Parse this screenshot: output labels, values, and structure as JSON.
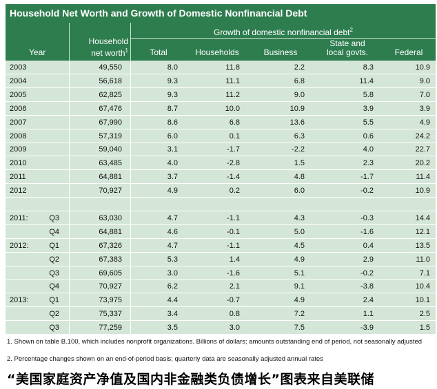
{
  "title": "Household Net Worth and Growth of Domestic Nonfinancial Debt",
  "header": {
    "year": "Year",
    "net_worth_line1": "Household",
    "net_worth_line2": "net worth",
    "net_worth_sup": "1",
    "group_label": "Growth of domestic nonfinancial debt",
    "group_sup": "2",
    "total": "Total",
    "households": "Households",
    "business": "Business",
    "state_line1": "State and",
    "state_line2": "local govts.",
    "federal": "Federal"
  },
  "rows": [
    {
      "year": "2003",
      "q": "",
      "nw": "49,550",
      "total": "8.0",
      "hh": "11.8",
      "bus": "2.2",
      "slg": "8.3",
      "fed": "10.9"
    },
    {
      "year": "2004",
      "q": "",
      "nw": "56,618",
      "total": "9.3",
      "hh": "11.1",
      "bus": "6.8",
      "slg": "11.4",
      "fed": "9.0"
    },
    {
      "year": "2005",
      "q": "",
      "nw": "62,825",
      "total": "9.3",
      "hh": "11.2",
      "bus": "9.0",
      "slg": "5.8",
      "fed": "7.0"
    },
    {
      "year": "2006",
      "q": "",
      "nw": "67,476",
      "total": "8.7",
      "hh": "10.0",
      "bus": "10.9",
      "slg": "3.9",
      "fed": "3.9"
    },
    {
      "year": "2007",
      "q": "",
      "nw": "67,990",
      "total": "8.6",
      "hh": "6.8",
      "bus": "13.6",
      "slg": "5.5",
      "fed": "4.9"
    },
    {
      "year": "2008",
      "q": "",
      "nw": "57,319",
      "total": "6.0",
      "hh": "0.1",
      "bus": "6.3",
      "slg": "0.6",
      "fed": "24.2"
    },
    {
      "year": "2009",
      "q": "",
      "nw": "59,040",
      "total": "3.1",
      "hh": "-1.7",
      "bus": "-2.2",
      "slg": "4.0",
      "fed": "22.7"
    },
    {
      "year": "2010",
      "q": "",
      "nw": "63,485",
      "total": "4.0",
      "hh": "-2.8",
      "bus": "1.5",
      "slg": "2.3",
      "fed": "20.2"
    },
    {
      "year": "2011",
      "q": "",
      "nw": "64,881",
      "total": "3.7",
      "hh": "-1.4",
      "bus": "4.8",
      "slg": "-1.7",
      "fed": "11.4"
    },
    {
      "year": "2012",
      "q": "",
      "nw": "70,927",
      "total": "4.9",
      "hh": "0.2",
      "bus": "6.0",
      "slg": "-0.2",
      "fed": "10.9"
    },
    {
      "year": "",
      "q": "",
      "nw": "",
      "total": "",
      "hh": "",
      "bus": "",
      "slg": "",
      "fed": ""
    },
    {
      "year": "2011:",
      "q": "Q3",
      "nw": "63,030",
      "total": "4.7",
      "hh": "-1.1",
      "bus": "4.3",
      "slg": "-0.3",
      "fed": "14.4"
    },
    {
      "year": "",
      "q": "Q4",
      "nw": "64,881",
      "total": "4.6",
      "hh": "-0.1",
      "bus": "5.0",
      "slg": "-1.6",
      "fed": "12.1"
    },
    {
      "year": "2012:",
      "q": "Q1",
      "nw": "67,326",
      "total": "4.7",
      "hh": "-1.1",
      "bus": "4.5",
      "slg": "0.4",
      "fed": "13.5"
    },
    {
      "year": "",
      "q": "Q2",
      "nw": "67,383",
      "total": "5.3",
      "hh": "1.4",
      "bus": "4.9",
      "slg": "2.9",
      "fed": "11.0"
    },
    {
      "year": "",
      "q": "Q3",
      "nw": "69,605",
      "total": "3.0",
      "hh": "-1.6",
      "bus": "5.1",
      "slg": "-0.2",
      "fed": "7.1"
    },
    {
      "year": "",
      "q": "Q4",
      "nw": "70,927",
      "total": "6.2",
      "hh": "2.1",
      "bus": "9.1",
      "slg": "-3.8",
      "fed": "10.4"
    },
    {
      "year": "2013:",
      "q": "Q1",
      "nw": "73,975",
      "total": "4.4",
      "hh": "-0.7",
      "bus": "4.9",
      "slg": "2.4",
      "fed": "10.1"
    },
    {
      "year": "",
      "q": "Q2",
      "nw": "75,337",
      "total": "3.4",
      "hh": "0.8",
      "bus": "7.2",
      "slg": "1.1",
      "fed": "2.5"
    },
    {
      "year": "",
      "q": "Q3",
      "nw": "77,259",
      "total": "3.5",
      "hh": "3.0",
      "bus": "7.5",
      "slg": "-3.9",
      "fed": "1.5"
    }
  ],
  "footnotes": {
    "note1": "1. Shown on table B.100, which includes nonprofit organizations.  Billions of dollars; amounts outstanding end of period, not seasonally adjusted",
    "note2": "2. Percentage changes shown on an end-of-period basis; quarterly data are seasonally adjusted annual rates"
  },
  "caption": "“美国家庭资产净值及国内非金融类负债增长”图表来自美联储",
  "colors": {
    "header_green": "#2e7d4f",
    "body_green": "#d4e6d8"
  }
}
